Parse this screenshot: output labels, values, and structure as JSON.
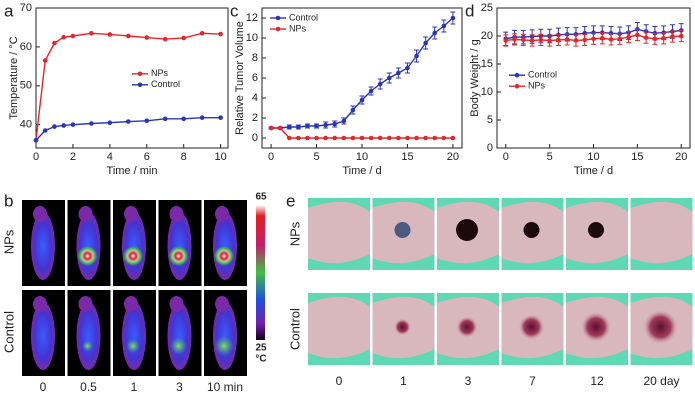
{
  "chart_data": [
    {
      "type": "line",
      "panel_label": "a",
      "xlabel": "Time / min",
      "ylabel": "Temperature / °C",
      "x": [
        0,
        0.5,
        1,
        1.5,
        2,
        3,
        4,
        5,
        6,
        7,
        8,
        9,
        10
      ],
      "xlim": [
        0,
        10.4
      ],
      "xticks": [
        0,
        2,
        4,
        6,
        8,
        10
      ],
      "ylim": [
        34,
        70
      ],
      "yticks": [
        40,
        50,
        60,
        70
      ],
      "legend": "center-right",
      "series": [
        {
          "name": "NPs",
          "color": "#e8262a",
          "values": [
            36,
            56.5,
            61,
            62.5,
            62.8,
            63.5,
            63.2,
            62.8,
            62.4,
            62,
            62.3,
            63.5,
            63.3
          ]
        },
        {
          "name": "Control",
          "color": "#2a35b8",
          "values": [
            36,
            38.5,
            39.5,
            39.8,
            40,
            40.3,
            40.5,
            40.8,
            41,
            41.5,
            41.5,
            41.8,
            41.8
          ]
        }
      ]
    },
    {
      "type": "line",
      "panel_label": "c",
      "xlabel": "Time / d",
      "ylabel": "Relative Tumor Volume",
      "x": [
        0,
        1,
        2,
        3,
        4,
        5,
        6,
        7,
        8,
        9,
        10,
        11,
        12,
        13,
        14,
        15,
        16,
        17,
        18,
        19,
        20
      ],
      "xlim": [
        -1,
        21
      ],
      "xticks": [
        0,
        5,
        10,
        15,
        20
      ],
      "ylim": [
        -1,
        13
      ],
      "yticks": [
        0,
        2,
        4,
        6,
        8,
        10,
        12
      ],
      "legend": "upper-left",
      "series": [
        {
          "name": "Control",
          "color": "#2a35b8",
          "values": [
            1,
            1,
            1.1,
            1.1,
            1.2,
            1.2,
            1.3,
            1.4,
            1.7,
            2.8,
            3.8,
            4.7,
            5.4,
            6,
            6.5,
            7,
            8.2,
            9.5,
            10.5,
            11.2,
            12
          ],
          "errors": [
            0.1,
            0.1,
            0.2,
            0.2,
            0.2,
            0.2,
            0.3,
            0.3,
            0.3,
            0.4,
            0.4,
            0.4,
            0.5,
            0.5,
            0.5,
            0.5,
            0.6,
            0.6,
            0.6,
            0.6,
            0.6
          ]
        },
        {
          "name": "NPs",
          "color": "#e8262a",
          "values": [
            1,
            1,
            0,
            0,
            0,
            0,
            0,
            0,
            0,
            0,
            0,
            0,
            0,
            0,
            0,
            0,
            0,
            0,
            0,
            0,
            0
          ]
        }
      ]
    },
    {
      "type": "line",
      "panel_label": "d",
      "xlabel": "Time / d",
      "ylabel": "Body Weight / g",
      "x": [
        0,
        1,
        2,
        3,
        4,
        5,
        6,
        7,
        8,
        9,
        10,
        11,
        12,
        13,
        14,
        15,
        16,
        17,
        18,
        19,
        20
      ],
      "xlim": [
        -1,
        21
      ],
      "xticks": [
        0,
        5,
        10,
        15,
        20
      ],
      "ylim": [
        0,
        25
      ],
      "yticks": [
        0,
        5,
        10,
        15,
        20,
        25
      ],
      "legend": "center-left",
      "series": [
        {
          "name": "Control",
          "color": "#2a35b8",
          "values": [
            19.5,
            19.8,
            19.8,
            19.9,
            20,
            20,
            20.2,
            20.3,
            20.3,
            20.5,
            20.6,
            20.6,
            20.5,
            20.4,
            20.6,
            21.2,
            20.8,
            20.5,
            20.6,
            20.8,
            21
          ],
          "errors": [
            1.2,
            1.2,
            1.2,
            1.2,
            1.2,
            1.2,
            1.2,
            1.2,
            1.2,
            1.2,
            1.2,
            1.2,
            1.2,
            1.2,
            1.2,
            1.2,
            1.2,
            1.2,
            1.2,
            1.2,
            1.2
          ]
        },
        {
          "name": "NPs",
          "color": "#e8262a",
          "values": [
            19.2,
            19.4,
            19.3,
            19.2,
            19.3,
            19.2,
            19.3,
            19.4,
            19.2,
            19.3,
            19.5,
            19.6,
            19.4,
            19.5,
            19.8,
            20.2,
            19.7,
            19.5,
            19.6,
            19.9,
            20
          ],
          "errors": [
            1,
            1,
            1,
            1,
            1,
            1,
            1,
            1,
            1,
            1,
            1,
            1,
            1,
            1,
            1,
            1,
            1,
            1,
            1,
            1,
            1
          ]
        }
      ]
    }
  ],
  "thermal_images": {
    "panel_label": "b",
    "rows": [
      "NPs",
      "Control"
    ],
    "times": [
      "0",
      "0.5",
      "1",
      "3",
      "10 min"
    ],
    "colorbar": {
      "max": "65",
      "min": "25",
      "unit": "°C"
    }
  },
  "photos": {
    "panel_label": "e",
    "rows": [
      "NPs",
      "Control"
    ],
    "days": [
      "0",
      "1",
      "3",
      "7",
      "12",
      "20 day"
    ]
  }
}
